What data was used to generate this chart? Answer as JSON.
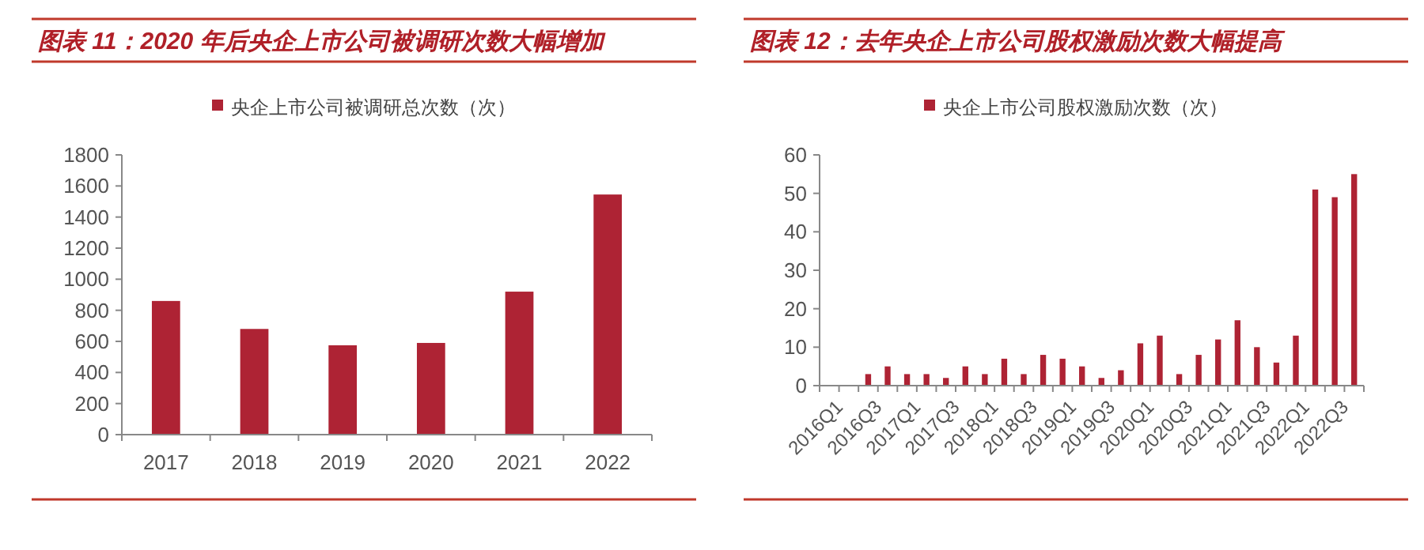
{
  "chart_data": [
    {
      "type": "bar",
      "title": "图表 11：2020 年后央企上市公司被调研次数大幅增加",
      "categories": [
        "2017",
        "2018",
        "2019",
        "2020",
        "2021",
        "2022"
      ],
      "series": [
        {
          "name": "央企上市公司被调研总次数（次）",
          "color": "#ae2334",
          "values": [
            860,
            680,
            575,
            590,
            920,
            1545
          ]
        }
      ],
      "ylim": [
        0,
        1800
      ],
      "yticks": [
        0,
        200,
        400,
        600,
        800,
        1000,
        1200,
        1400,
        1600,
        1800
      ],
      "legend": "top"
    },
    {
      "type": "bar",
      "title": "图表 12：去年央企上市公司股权激励次数大幅提高",
      "categories": [
        "2016Q1",
        null,
        "2016Q3",
        null,
        "2017Q1",
        null,
        "2017Q3",
        null,
        "2018Q1",
        null,
        "2018Q3",
        null,
        "2019Q1",
        null,
        "2019Q3",
        null,
        "2020Q1",
        null,
        "2020Q3",
        null,
        "2021Q1",
        null,
        "2021Q3",
        null,
        "2022Q1",
        null,
        "2022Q3",
        null
      ],
      "series": [
        {
          "name": "央企上市公司股权激励次数（次）",
          "color": "#ae2334",
          "values": [
            0,
            0,
            3,
            5,
            3,
            3,
            2,
            5,
            3,
            7,
            3,
            8,
            7,
            5,
            2,
            4,
            11,
            13,
            3,
            8,
            12,
            17,
            10,
            6,
            13,
            51,
            49,
            55
          ]
        }
      ],
      "ylim": [
        0,
        60
      ],
      "yticks": [
        0,
        10,
        20,
        30,
        40,
        50,
        60
      ],
      "legend": "top"
    }
  ]
}
